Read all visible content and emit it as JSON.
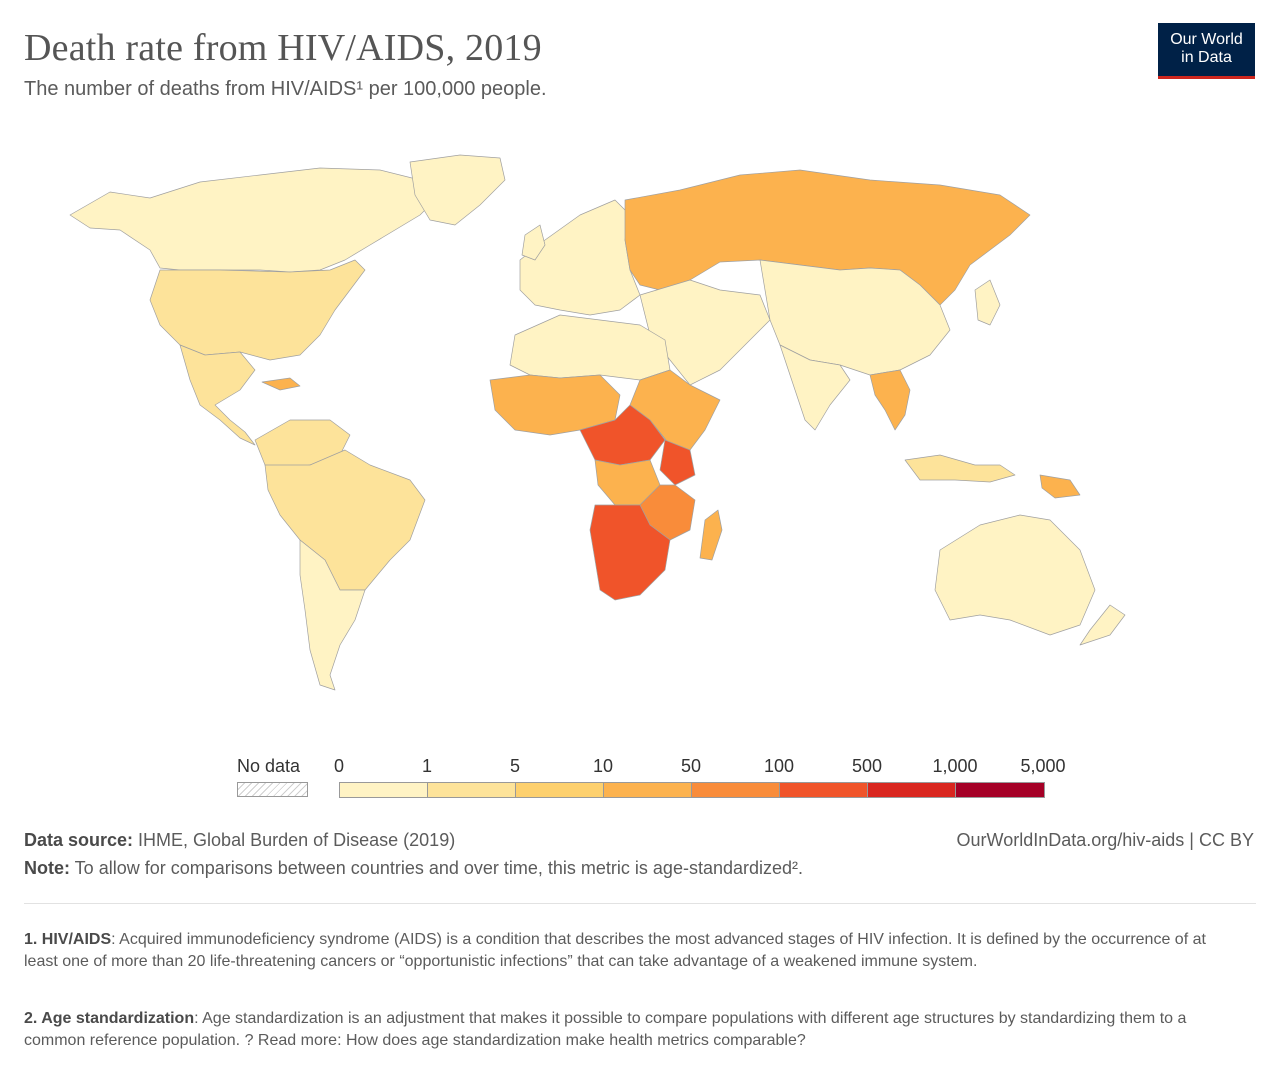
{
  "header": {
    "title": "Death rate from HIV/AIDS, 2019",
    "subtitle": "The number of deaths from HIV/AIDS¹ per 100,000 people.",
    "logo_line1": "Our World",
    "logo_line2": "in Data"
  },
  "legend": {
    "no_data_label": "No data",
    "ticks": [
      "0",
      "1",
      "5",
      "10",
      "50",
      "100",
      "500",
      "1,000",
      "5,000"
    ],
    "bin_colors": [
      "#fff3c4",
      "#fde39a",
      "#fdd06e",
      "#fcb24e",
      "#f98c3a",
      "#f0542a",
      "#d9261f",
      "#a50026"
    ]
  },
  "map_colors": {
    "land_low": "#fff3c4",
    "land_mid": "#fde39a",
    "land_orange": "#fcb24e",
    "land_dark": "#f98c3a",
    "land_red": "#f0542a",
    "border": "#a0a0a0"
  },
  "footer": {
    "source_label": "Data source:",
    "source_text": " IHME, Global Burden of Disease (2019)",
    "url": "OurWorldInData.org/hiv-aids | CC BY",
    "note_label": "Note:",
    "note_text": " To allow for comparisons between countries and over time, this metric is age-standardized².",
    "fn1_label": "1. HIV/AIDS",
    "fn1_text": ": Acquired immunodeficiency syndrome (AIDS) is a condition that describes the most advanced stages of HIV infection. It is defined by the occurrence of at least one of more than 20 life-threatening cancers or “opportunistic infections” that can take advantage of a weakened immune system.",
    "fn2_label": "2. Age standardization",
    "fn2_text": ": Age standardization is an adjustment that makes it possible to compare populations with different age structures by standardizing them to a common reference population. ? Read more: How does age standardization make health metrics comparable?"
  }
}
